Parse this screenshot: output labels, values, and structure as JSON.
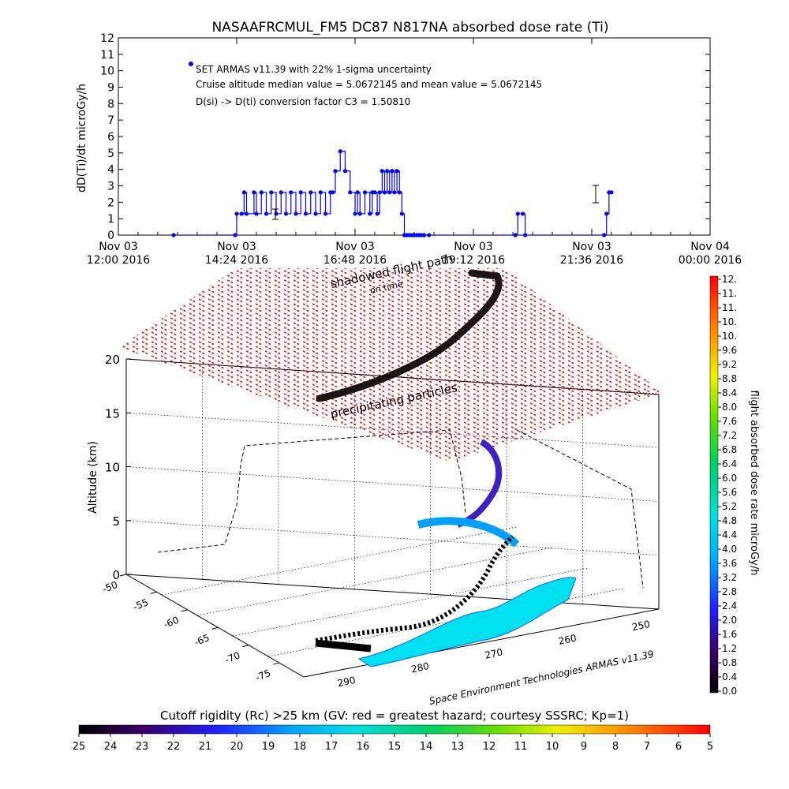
{
  "chart_data": [
    {
      "type": "line",
      "title": "NASAAFRCMUL_FM5 DC87 N817NA absorbed dose rate (Ti)",
      "ylabel": "dD(Ti)/dt microGy/h",
      "ylim": [
        0,
        12
      ],
      "yticks": [
        "0",
        "1",
        "2",
        "3",
        "4",
        "5",
        "6",
        "7",
        "8",
        "9",
        "10",
        "11",
        "12"
      ],
      "xticks": [
        {
          "top": "Nov 03",
          "bottom": "12:00 2016"
        },
        {
          "top": "Nov 03",
          "bottom": "14:24 2016"
        },
        {
          "top": "Nov 03",
          "bottom": "16:48 2016"
        },
        {
          "top": "Nov 03",
          "bottom": "19:12 2016"
        },
        {
          "top": "Nov 03",
          "bottom": "21:36 2016"
        },
        {
          "top": "Nov 04",
          "bottom": "00:00 2016"
        }
      ],
      "annotations": [
        "SET ARMAS v11.39 with 22% 1-sigma uncertainty",
        "Cruise altitude median value = 5.0672145 and mean value = 5.0672145",
        "D(si) -> D(ti) conversion factor C3 = 1.50810"
      ],
      "series_color": "#0000ff",
      "series": [
        {
          "x_hours": [
            13.12,
            14.37,
            14.4,
            14.5,
            14.55,
            14.6,
            14.75,
            14.8,
            14.9,
            15.0,
            15.1,
            15.2,
            15.3,
            15.4,
            15.5,
            15.6,
            15.7,
            15.8,
            15.9,
            16.0,
            16.1,
            16.2,
            16.3,
            16.35,
            16.4,
            16.5,
            16.6,
            16.7,
            16.8,
            16.85,
            16.9,
            17.0,
            17.1,
            17.15,
            17.2,
            17.25,
            17.3,
            17.35,
            17.4,
            17.45,
            17.5,
            17.55,
            17.6,
            17.65,
            17.7,
            17.75,
            17.8,
            17.85,
            17.9,
            17.95,
            18.0,
            18.05,
            18.1,
            18.15,
            18.2,
            18.3,
            20.05,
            20.1,
            20.2,
            20.25,
            21.85,
            21.9,
            21.95,
            22.0
          ],
          "y": [
            0.0,
            0.0,
            1.3,
            1.3,
            2.6,
            1.3,
            2.6,
            1.3,
            2.6,
            1.3,
            2.6,
            1.3,
            2.6,
            1.3,
            2.6,
            1.3,
            2.6,
            1.3,
            2.6,
            1.3,
            2.6,
            1.3,
            2.6,
            2.6,
            3.9,
            5.1,
            3.9,
            2.6,
            1.3,
            2.6,
            1.3,
            2.6,
            1.3,
            2.6,
            2.6,
            1.3,
            2.6,
            3.9,
            2.6,
            3.9,
            2.6,
            3.9,
            2.6,
            3.9,
            2.6,
            1.3,
            0.0,
            0.0,
            0.0,
            0.0,
            0.0,
            0.0,
            0.0,
            0.0,
            0.0,
            0.0,
            0.0,
            1.3,
            1.3,
            0.0,
            0.0,
            1.3,
            2.6,
            2.6
          ]
        }
      ]
    },
    {
      "type": "scatter",
      "zlabel": "Altitude (km)",
      "zticks": [
        "0",
        "5",
        "10",
        "15",
        "20"
      ],
      "latitude_ticks": [
        "-50",
        "-55",
        "-60",
        "-65",
        "-70",
        "-75"
      ],
      "longitude_ticks": [
        "250",
        "260",
        "270",
        "280",
        "290"
      ],
      "annotations": [
        "shadowed flight path",
        "on time",
        "precipitating particles"
      ],
      "credit": "Space Environment Technologies ARMAS v11.39",
      "shadow_plane_color": "#dd0000",
      "flight_path_color": "#000000"
    },
    {
      "type": "heatmap",
      "colorbar": "vertical",
      "label": "flight absorbed dose rate microGy/h",
      "ticks": [
        "12.",
        "11.",
        "11.",
        "10.",
        "10.",
        "9.6",
        "9.2",
        "8.8",
        "8.4",
        "8.0",
        "7.6",
        "7.2",
        "6.8",
        "6.4",
        "6.0",
        "5.6",
        "5.2",
        "4.8",
        "4.4",
        "4.0",
        "3.6",
        "3.2",
        "2.8",
        "2.4",
        "2.0",
        "1.6",
        "1.2",
        "0.8",
        "0.4",
        "0.0"
      ]
    },
    {
      "type": "heatmap",
      "colorbar": "horizontal",
      "label": "Cutoff rigidity (Rc) >25 km (GV: red = greatest hazard; courtesy SSSRC; Kp=1)",
      "ticks": [
        "25",
        "24",
        "23",
        "22",
        "21",
        "20",
        "19",
        "18",
        "17",
        "16",
        "15",
        "14",
        "13",
        "12",
        "11",
        "10",
        "9",
        "8",
        "7",
        "6",
        "5"
      ]
    }
  ]
}
